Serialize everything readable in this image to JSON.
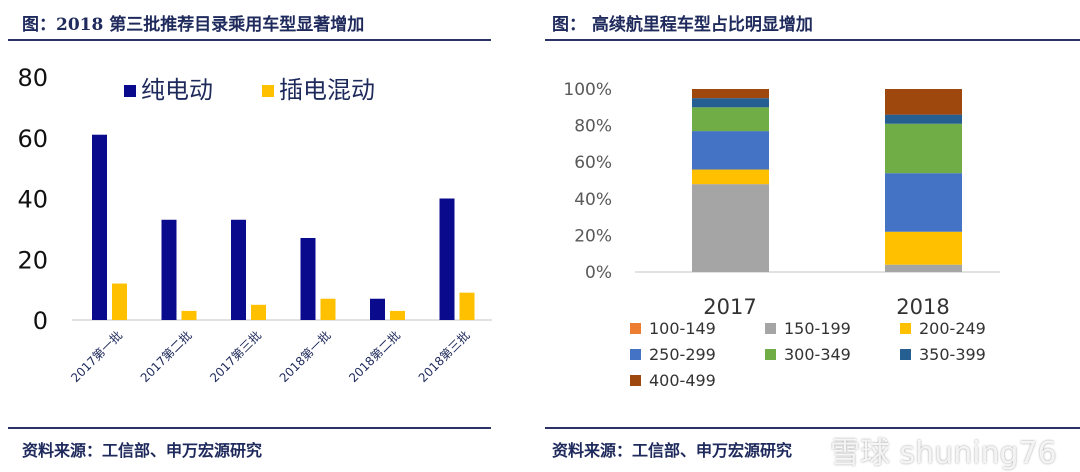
{
  "left": {
    "title": "图：2018 第三批推荐目录乘用车型显著增加",
    "source": "资料来源：工信部、申万宏源研究"
  },
  "right": {
    "title": "图：  高续航里程车型占比明显增加",
    "source": "资料来源：工信部、申万宏源研究"
  },
  "watermark": "雪球 shuning76",
  "chart_data": [
    {
      "type": "bar",
      "title": "",
      "categories": [
        "2017第一批",
        "2017第二批",
        "2017第三批",
        "2018第一批",
        "2018第二批",
        "2018第三批"
      ],
      "series": [
        {
          "name": "纯电动",
          "color": "#0a0a8c",
          "values": [
            61,
            33,
            33,
            27,
            7,
            40
          ]
        },
        {
          "name": "插电混动",
          "color": "#ffc000",
          "values": [
            12,
            3,
            5,
            7,
            3,
            9
          ]
        }
      ],
      "ylim": [
        0,
        80
      ],
      "yticks": [
        0,
        20,
        40,
        60,
        80
      ],
      "legend": "top",
      "grid": false
    },
    {
      "type": "bar",
      "stacked": true,
      "title": "",
      "categories": [
        "2017",
        "2018"
      ],
      "series": [
        {
          "name": "100-149",
          "color": "#ed7d31",
          "values": [
            0,
            0
          ]
        },
        {
          "name": "150-199",
          "color": "#a5a5a5",
          "values": [
            48,
            4
          ]
        },
        {
          "name": "200-249",
          "color": "#ffc000",
          "values": [
            8,
            18
          ]
        },
        {
          "name": "250-299",
          "color": "#4472c4",
          "values": [
            21,
            32
          ]
        },
        {
          "name": "300-349",
          "color": "#70ad47",
          "values": [
            13,
            27
          ]
        },
        {
          "name": "350-399",
          "color": "#255e91",
          "values": [
            5,
            5
          ]
        },
        {
          "name": "400-499",
          "color": "#9e480e",
          "values": [
            5,
            14
          ]
        }
      ],
      "ylim": [
        0,
        100
      ],
      "yticks": [
        "0%",
        "20%",
        "40%",
        "60%",
        "80%",
        "100%"
      ],
      "legend": "bottom",
      "grid": false
    }
  ]
}
